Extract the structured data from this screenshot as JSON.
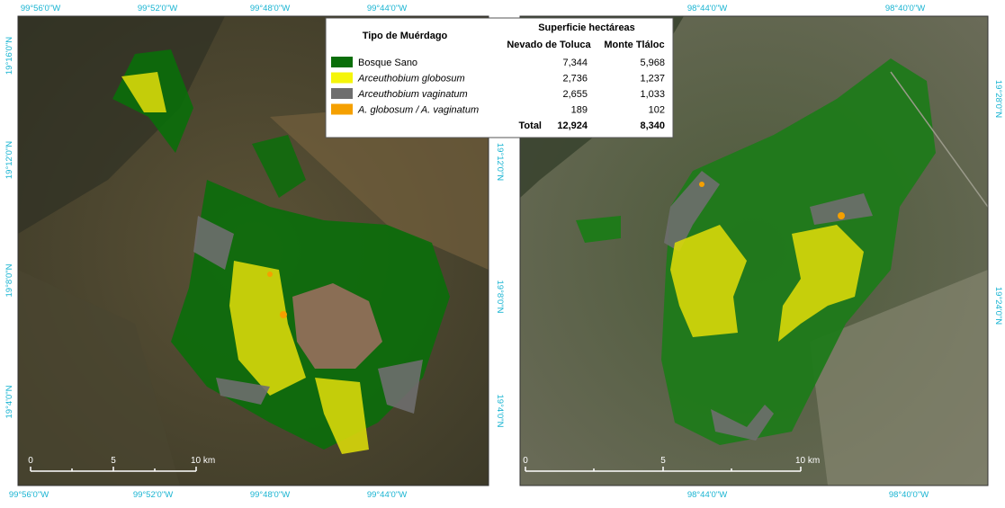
{
  "left_map": {
    "top_labels": [
      "99°56'0\"W",
      "99°52'0\"W",
      "99°48'0\"W",
      "99°44'0\"W"
    ],
    "bottom_labels": [
      "99°56'0\"W",
      "99°52'0\"W",
      "99°48'0\"W",
      "99°44'0\"W"
    ],
    "left_labels": [
      "19°16'0\"N",
      "19°12'0\"N",
      "19°8'0\"N",
      "19°4'0\"N"
    ],
    "right_labels": [
      "19°12'0\"N",
      "19°8'0\"N",
      "19°4'0\"N"
    ],
    "scale": [
      "0",
      "5",
      "10 km"
    ]
  },
  "right_map": {
    "top_labels": [
      "98°44'0\"W",
      "98°40'0\"W"
    ],
    "bottom_labels": [
      "98°44'0\"W",
      "98°40'0\"W"
    ],
    "right_labels": [
      "19°28'0\"N",
      "19°24'0\"N"
    ],
    "scale": [
      "0",
      "5",
      "10 km"
    ]
  },
  "legend": {
    "title": "Tipo de Muérdago",
    "header": "Superficie hectáreas",
    "columns": [
      "Nevado de Toluca",
      "Monte Tláloc"
    ],
    "rows": [
      {
        "name": "Bosque Sano",
        "color": "#0a6e0a",
        "italic": false,
        "values": [
          "7,344",
          "5,968"
        ]
      },
      {
        "name": "Arceuthobium globosum",
        "color": "#f5f50a",
        "italic": true,
        "values": [
          "2,736",
          "1,237"
        ]
      },
      {
        "name": "Arceuthobium vaginatum",
        "color": "#6e6e6e",
        "italic": true,
        "values": [
          "2,655",
          "1,033"
        ]
      },
      {
        "name": "A. globosum / A. vaginatum",
        "color": "#f5a000",
        "italic": true,
        "values": [
          "189",
          "102"
        ]
      }
    ],
    "total": {
      "label": "Total",
      "values": [
        "12,924",
        "8,340"
      ]
    }
  }
}
